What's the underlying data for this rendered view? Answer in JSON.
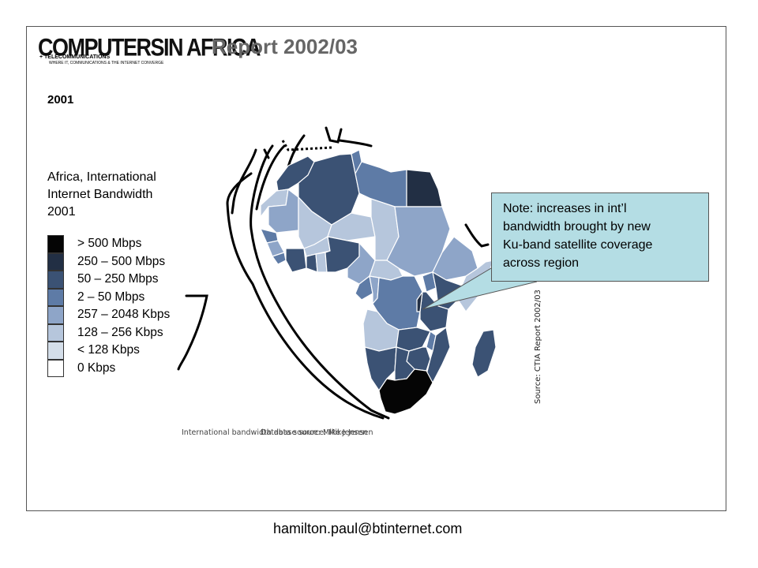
{
  "header": {
    "logo_main": "COMPUTERSIN AFRICA",
    "logo_sub": "+ TELECOMMUNICATIONS",
    "logo_tagline": "WHERE IT, COMMUNICATIONS & THE INTERNET CONVERGE",
    "report_title": "Report 2002/03"
  },
  "year_label": "2001",
  "map_title": [
    "Africa, International",
    "Internet Bandwidth",
    "2001"
  ],
  "legend": [
    {
      "label": "> 500 Mbps",
      "color": "#050505"
    },
    {
      "label": "250 – 500 Mbps",
      "color": "#222f44"
    },
    {
      "label": "50 – 250 Mbps",
      "color": "#3b5274"
    },
    {
      "label": "2 – 50 Mbps",
      "color": "#5e7ba6"
    },
    {
      "label": "257 – 2048 Kbps",
      "color": "#8ea5c8"
    },
    {
      "label": "128 – 256 Kbps",
      "color": "#b6c6dc"
    },
    {
      "label": "< 128 Kbps",
      "color": "#d4dee9"
    },
    {
      "label": "0 Kbps",
      "color": "#ffffff"
    }
  ],
  "callout": {
    "lines": [
      "Note: increases in int’l",
      "bandwidth brought by new",
      "Ku-band satellite coverage",
      "across region"
    ],
    "background": "#b4dde4"
  },
  "source_note": "Source: CTIA Report 2002/03",
  "captions": [
    "International bandwidth data source: Mike Jensen",
    "Database source: Mike Jensen"
  ],
  "footer": {
    "email": "hamilton.paul@btinternet.com"
  }
}
